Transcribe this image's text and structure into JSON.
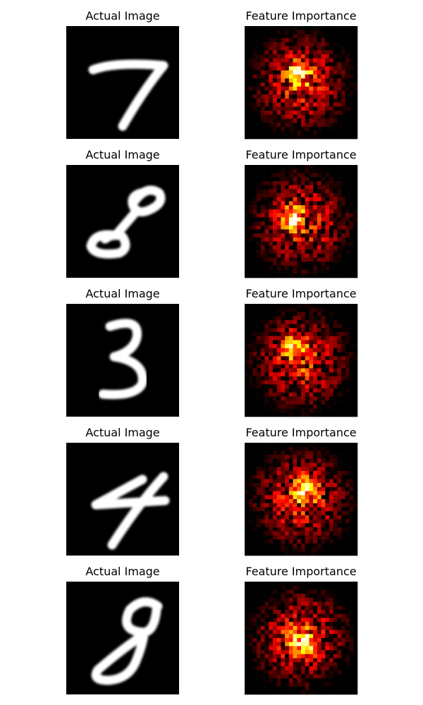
{
  "rows": [
    {
      "left": {
        "title": "Actual Image"
      },
      "right": {
        "title": "Feature Importance"
      }
    },
    {
      "left": {
        "title": "Actual Image"
      },
      "right": {
        "title": "Feature Importance"
      }
    },
    {
      "left": {
        "title": "Actual Image"
      },
      "right": {
        "title": "Feature Importance"
      }
    },
    {
      "left": {
        "title": "Actual Image"
      },
      "right": {
        "title": "Feature Importance"
      }
    },
    {
      "left": {
        "title": "Actual Image"
      },
      "right": {
        "title": "Feature Importance"
      }
    }
  ]
}
